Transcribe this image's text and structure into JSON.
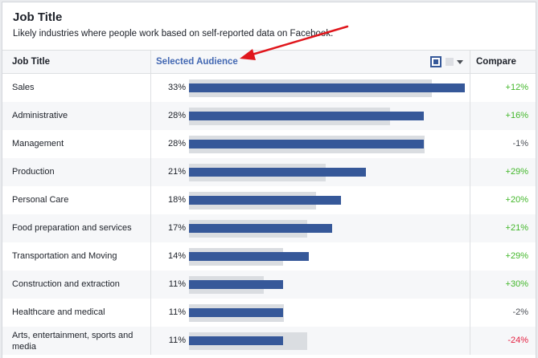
{
  "panel": {
    "title": "Job Title",
    "subtitle": "Likely industries where people work based on self-reported data on Facebook."
  },
  "header": {
    "job_title": "Job Title",
    "selected_audience": "Selected Audience",
    "compare": "Compare"
  },
  "colors": {
    "selected_bar": "#365899",
    "facebook_bar": "#dadde1",
    "positive": "#42b72a",
    "negative": "#e41e3f",
    "link": "#4267b2",
    "annotation_arrow": "#e0161c"
  },
  "rows": [
    {
      "job": "Sales",
      "pct": "33%",
      "selected_value": 100,
      "facebook_value": 88,
      "compare": "+12%",
      "trend": "pos"
    },
    {
      "job": "Administrative",
      "pct": "28%",
      "selected_value": 85,
      "facebook_value": 73,
      "compare": "+16%",
      "trend": "pos"
    },
    {
      "job": "Management",
      "pct": "28%",
      "selected_value": 85,
      "facebook_value": 85.5,
      "compare": "-1%",
      "trend": "neu"
    },
    {
      "job": "Production",
      "pct": "21%",
      "selected_value": 64,
      "facebook_value": 49.5,
      "compare": "+29%",
      "trend": "pos"
    },
    {
      "job": "Personal Care",
      "pct": "18%",
      "selected_value": 55,
      "facebook_value": 46,
      "compare": "+20%",
      "trend": "pos"
    },
    {
      "job": "Food preparation and services",
      "pct": "17%",
      "selected_value": 52,
      "facebook_value": 43,
      "compare": "+21%",
      "trend": "pos"
    },
    {
      "job": "Transportation and Moving",
      "pct": "14%",
      "selected_value": 43.5,
      "facebook_value": 34,
      "compare": "+29%",
      "trend": "pos"
    },
    {
      "job": "Construction and extraction",
      "pct": "11%",
      "selected_value": 34,
      "facebook_value": 27,
      "compare": "+30%",
      "trend": "pos"
    },
    {
      "job": "Healthcare and medical",
      "pct": "11%",
      "selected_value": 34,
      "facebook_value": 34.5,
      "compare": "-2%",
      "trend": "neu"
    },
    {
      "job": "Arts, entertainment, sports and media",
      "pct": "11%",
      "selected_value": 34,
      "facebook_value": 43,
      "compare": "-24%",
      "trend": "neg"
    }
  ]
}
